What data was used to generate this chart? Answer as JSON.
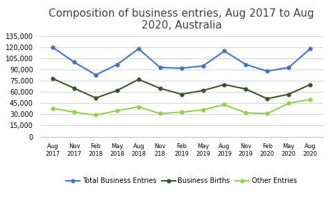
{
  "title": "Composition of business entries, Aug 2017 to Aug\n2020, Australia",
  "x_labels": [
    "Aug\n2017",
    "Nov\n2017",
    "Feb\n2018",
    "May\n2018",
    "Aug\n2018",
    "Nov\n218",
    "Feb\n2019",
    "May\n2019",
    "Aug\n2019",
    "Nov\n2019",
    "Feb\n2020",
    "May\n2020",
    "Aug\n2020"
  ],
  "total_business_entries": [
    120000,
    100000,
    83000,
    97000,
    118000,
    93000,
    92000,
    95000,
    115000,
    97000,
    88000,
    93000,
    118000
  ],
  "business_births": [
    78000,
    65000,
    52000,
    62000,
    77000,
    65000,
    57000,
    62000,
    70000,
    64000,
    51000,
    57000,
    70000
  ],
  "other_entries": [
    38000,
    33000,
    29000,
    35000,
    40000,
    31000,
    33000,
    36000,
    43000,
    32000,
    31000,
    45000,
    50000
  ],
  "color_total": "#4472C4",
  "color_births": "#375623",
  "color_other": "#92D050",
  "ylim": [
    0,
    135000
  ],
  "yticks": [
    0,
    15000,
    30000,
    45000,
    60000,
    75000,
    90000,
    105000,
    120000,
    135000
  ],
  "title_color": "#404040",
  "title_fontsize": 11,
  "legend_labels": [
    "Total Business Entries",
    "Business Births",
    "Other Entries"
  ],
  "background_color": "#FFFFFF",
  "grid_color": "#C0C0C0"
}
